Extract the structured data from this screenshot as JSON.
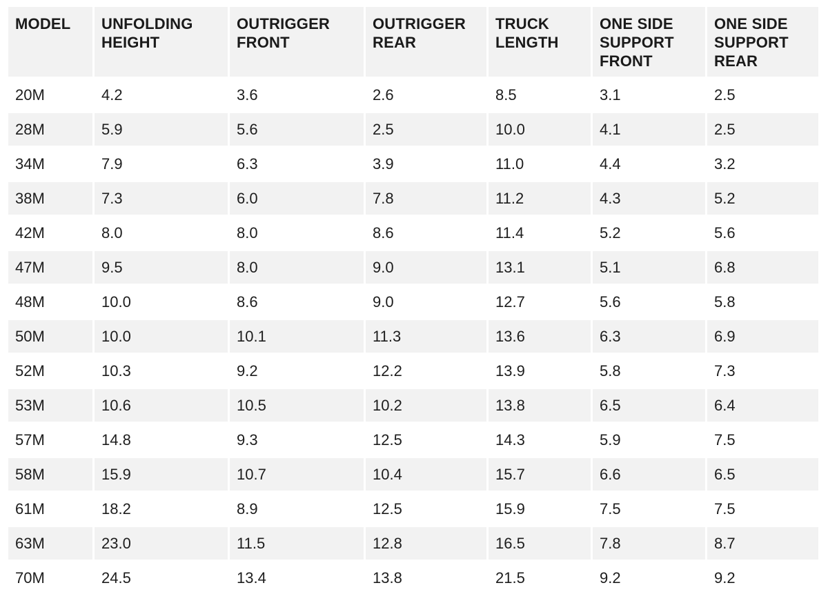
{
  "chart_data": {
    "type": "table",
    "columns": [
      "MODEL",
      "UNFOLDING HEIGHT",
      "OUTRIGGER FRONT",
      "OUTRIGGER REAR",
      "TRUCK LENGTH",
      "ONE SIDE SUPPORT FRONT",
      "ONE SIDE SUPPORT REAR"
    ],
    "rows": [
      [
        "20M",
        "4.2",
        "3.6",
        "2.6",
        "8.5",
        "3.1",
        "2.5"
      ],
      [
        "28M",
        "5.9",
        "5.6",
        "2.5",
        "10.0",
        "4.1",
        "2.5"
      ],
      [
        "34M",
        "7.9",
        "6.3",
        "3.9",
        "11.0",
        "4.4",
        "3.2"
      ],
      [
        "38M",
        "7.3",
        "6.0",
        "7.8",
        "11.2",
        "4.3",
        "5.2"
      ],
      [
        "42M",
        "8.0",
        "8.0",
        "8.6",
        "11.4",
        "5.2",
        "5.6"
      ],
      [
        "47M",
        "9.5",
        "8.0",
        "9.0",
        "13.1",
        "5.1",
        "6.8"
      ],
      [
        "48M",
        "10.0",
        "8.6",
        "9.0",
        "12.7",
        "5.6",
        "5.8"
      ],
      [
        "50M",
        "10.0",
        "10.1",
        "11.3",
        "13.6",
        "6.3",
        "6.9"
      ],
      [
        "52M",
        "10.3",
        "9.2",
        "12.2",
        "13.9",
        "5.8",
        "7.3"
      ],
      [
        "53M",
        "10.6",
        "10.5",
        "10.2",
        "13.8",
        "6.5",
        "6.4"
      ],
      [
        "57M",
        "14.8",
        "9.3",
        "12.5",
        "14.3",
        "5.9",
        "7.5"
      ],
      [
        "58M",
        "15.9",
        "10.7",
        "10.4",
        "15.7",
        "6.6",
        "6.5"
      ],
      [
        "61M",
        "18.2",
        "8.9",
        "12.5",
        "15.9",
        "7.5",
        "7.5"
      ],
      [
        "63M",
        "23.0",
        "11.5",
        "12.8",
        "16.5",
        "7.8",
        "8.7"
      ],
      [
        "70M",
        "24.5",
        "13.4",
        "13.8",
        "21.5",
        "9.2",
        "9.2"
      ]
    ],
    "layout": {
      "stripe_color": "#f2f2f2",
      "background_color": "#ffffff",
      "text_color": "#1d1d1d",
      "striping": "header and even data rows shaded"
    }
  }
}
